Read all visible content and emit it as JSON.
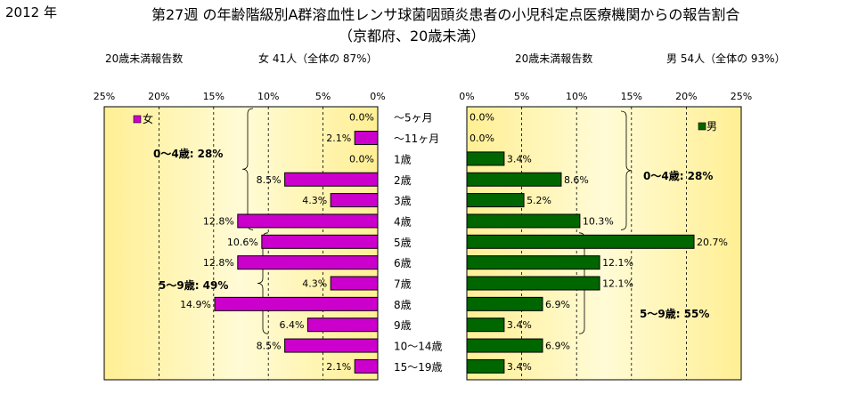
{
  "header": {
    "year": "2012 年",
    "title": "第27週 の年齢階級別A群溶血性レンサ球菌咽頭炎患者の小児科定点医療機関からの報告割合",
    "subtitle": "（京都府、20歳未満）",
    "female_count_label": "20歳未満報告数",
    "female_total": "女 41人（全体の 87%）",
    "male_count_label": "20歳未満報告数",
    "male_total": "男 54人（全体の 93%）"
  },
  "colors": {
    "female_bar": "#CC00CC",
    "male_bar": "#006600",
    "plot_bg_center": "#FFFBD6",
    "plot_bg_edge": "#FFEF94"
  },
  "chart_data": [
    {
      "type": "bar",
      "orientation": "horizontal",
      "direction": "reversed",
      "categories": [
        "～5ヶ月",
        "～11ヶ月",
        "1歳",
        "2歳",
        "3歳",
        "4歳",
        "5歳",
        "6歳",
        "7歳",
        "8歳",
        "9歳",
        "10～14歳",
        "15～19歳"
      ],
      "series": [
        {
          "name": "女",
          "values": [
            0.0,
            2.1,
            0.0,
            8.5,
            4.3,
            12.8,
            10.6,
            12.8,
            4.3,
            14.9,
            6.4,
            8.5,
            2.1
          ]
        }
      ],
      "data_labels": [
        "0.0%",
        "2.1%",
        "0.0%",
        "8.5%",
        "4.3%",
        "12.8%",
        "10.6%",
        "12.8%",
        "4.3%",
        "14.9%",
        "6.4%",
        "8.5%",
        "2.1%"
      ],
      "xlim": [
        0,
        25
      ],
      "xticks": [
        "25%",
        "20%",
        "15%",
        "10%",
        "5%",
        "0%"
      ],
      "grid": "vertical",
      "legend": "top-left",
      "annotations": [
        "0～4歳: 28%",
        "5～9歳: 49%"
      ]
    },
    {
      "type": "bar",
      "orientation": "horizontal",
      "categories": [
        "～5ヶ月",
        "～11ヶ月",
        "1歳",
        "2歳",
        "3歳",
        "4歳",
        "5歳",
        "6歳",
        "7歳",
        "8歳",
        "9歳",
        "10～14歳",
        "15～19歳"
      ],
      "series": [
        {
          "name": "男",
          "values": [
            0.0,
            0.0,
            3.4,
            8.6,
            5.2,
            10.3,
            20.7,
            12.1,
            12.1,
            6.9,
            3.4,
            6.9,
            3.4
          ]
        }
      ],
      "data_labels": [
        "0.0%",
        "0.0%",
        "3.4%",
        "8.6%",
        "5.2%",
        "10.3%",
        "20.7%",
        "12.1%",
        "12.1%",
        "6.9%",
        "3.4%",
        "6.9%",
        "3.4%"
      ],
      "xlim": [
        0,
        25
      ],
      "xticks": [
        "0%",
        "5%",
        "10%",
        "15%",
        "20%",
        "25%"
      ],
      "grid": "vertical",
      "legend": "top-right",
      "annotations": [
        "0～4歳: 28%",
        "5～9歳: 55%"
      ]
    }
  ]
}
